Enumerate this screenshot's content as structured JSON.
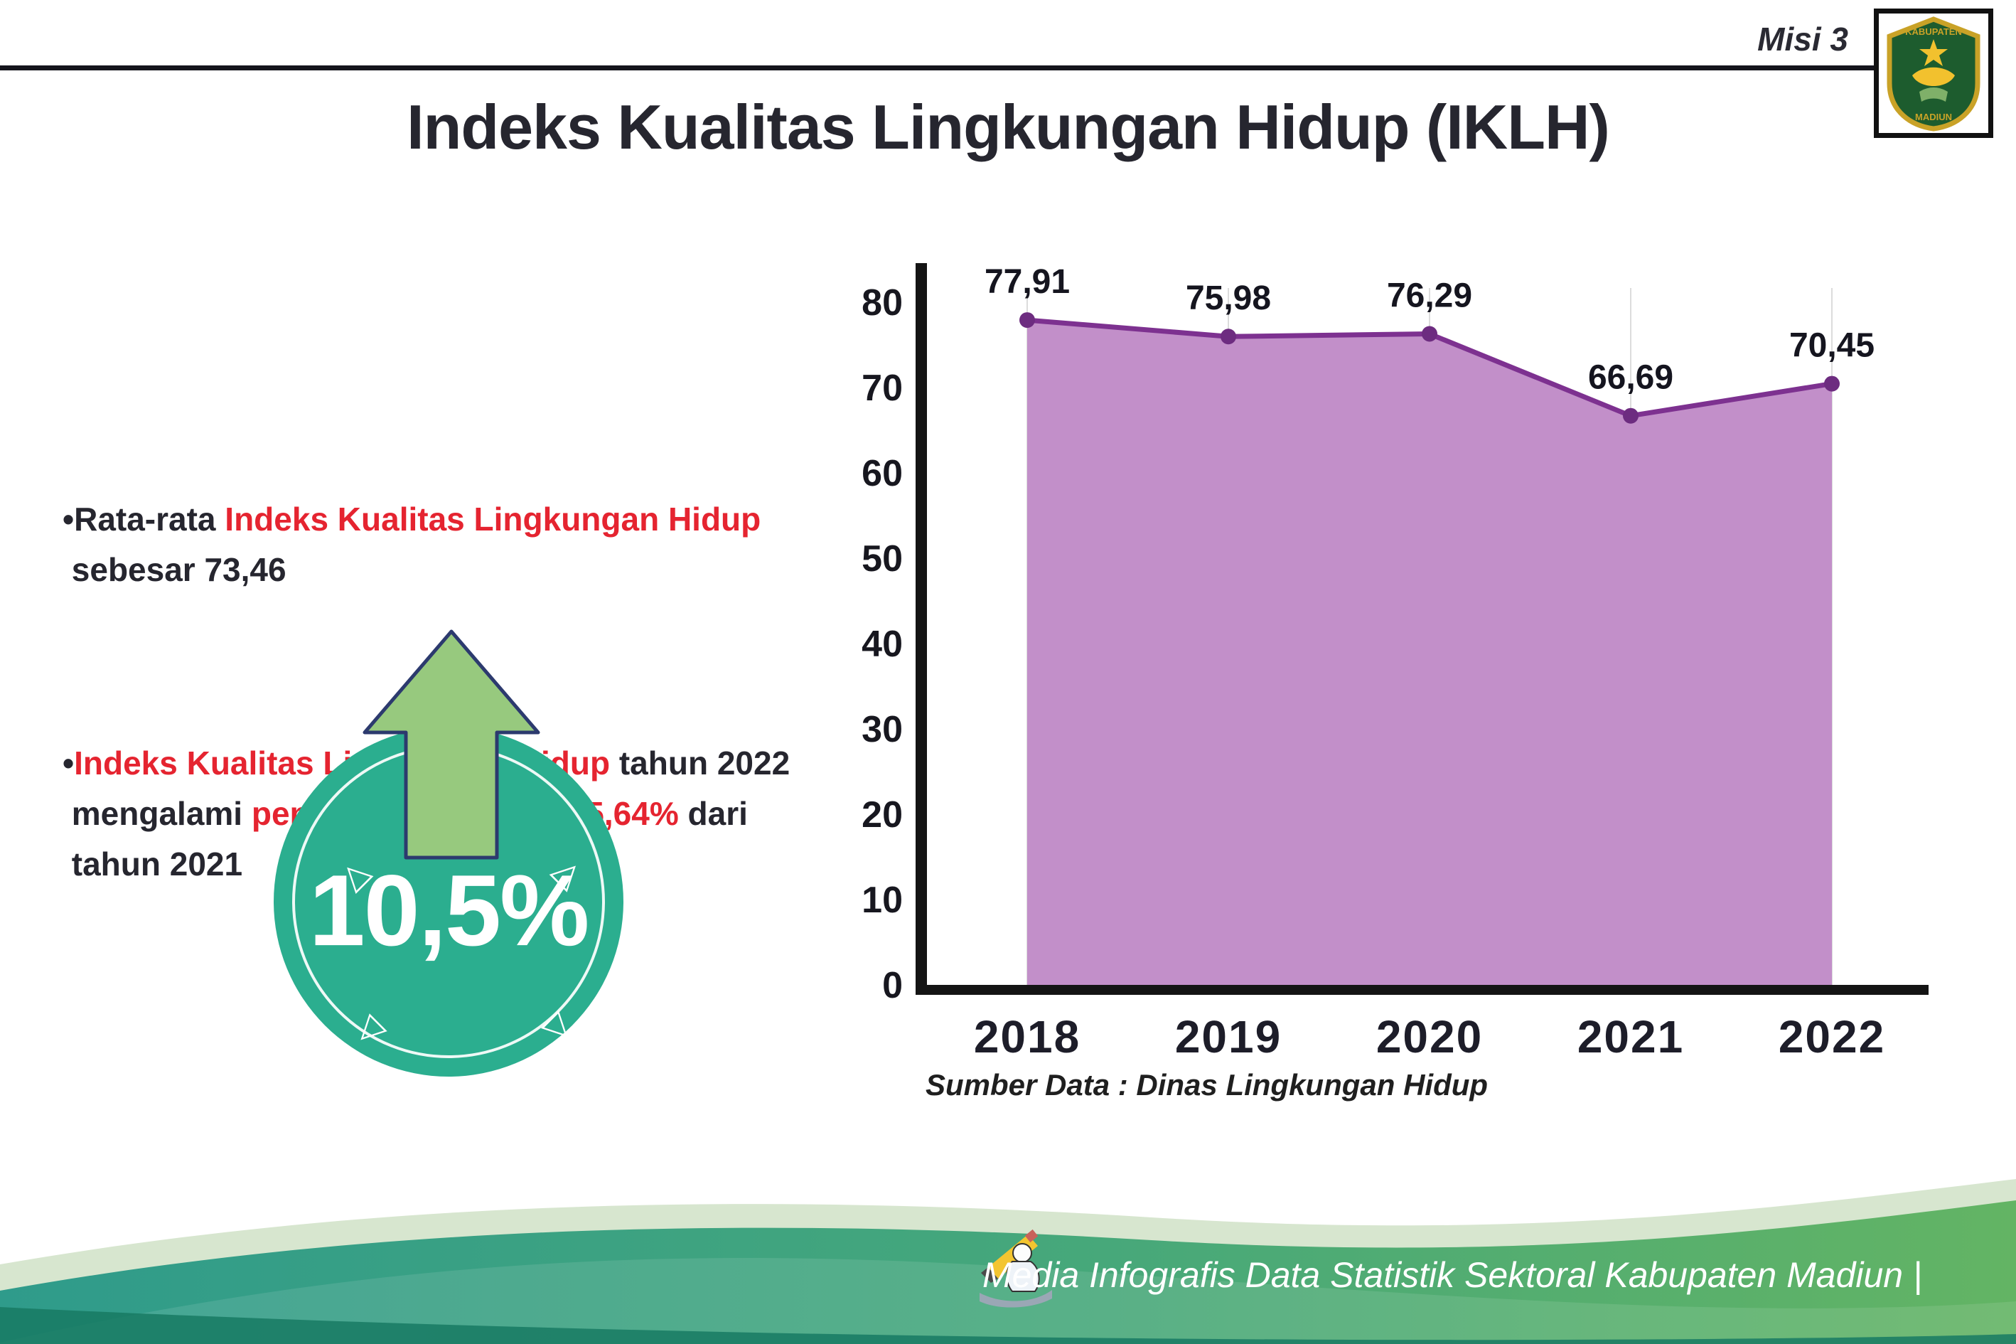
{
  "header": {
    "misi_label": "Misi 3",
    "title": "Indeks Kualitas Lingkungan Hidup (IKLH)",
    "logo_top": "KABUPATEN",
    "logo_bottom": "MADIUN"
  },
  "bullets": {
    "b1": {
      "segments": [
        {
          "t": "•Rata-rata ",
          "c": "dark"
        },
        {
          "t": "Indeks Kualitas Lingkungan Hidup",
          "c": "red"
        },
        {
          "t": "\n sebesar 73,46",
          "c": "dark"
        }
      ]
    },
    "b2": {
      "segments": [
        {
          "t": "•",
          "c": "dark"
        },
        {
          "t": "Indeks Kualitas Lingkungan Hidup",
          "c": "red"
        },
        {
          "t": " tahun 2022\n mengalami ",
          "c": "dark"
        },
        {
          "t": "peningkatan",
          "c": "red"
        },
        {
          "t": " sebesar ",
          "c": "dark"
        },
        {
          "t": "5,64%",
          "c": "red"
        },
        {
          "t": " dari\n tahun 2021",
          "c": "dark"
        }
      ]
    }
  },
  "badge": {
    "value": "10,5%",
    "circle_color": "#2BAE8F",
    "arrow_color": "#97C97E"
  },
  "chart_data": {
    "type": "area",
    "categories": [
      "2018",
      "2019",
      "2020",
      "2021",
      "2022"
    ],
    "values": [
      77.91,
      75.98,
      76.29,
      66.69,
      70.45
    ],
    "value_labels": [
      "77,91",
      "75,98",
      "76,29",
      "66,69",
      "70,45"
    ],
    "ylim": [
      0,
      80
    ],
    "yticks": [
      0,
      10,
      20,
      30,
      40,
      50,
      60,
      70,
      80
    ],
    "xlabel": "",
    "ylabel": "",
    "grid": "vertical-light",
    "legend": "none",
    "line_color": "#7D3190",
    "fill_color": "#C28FC9",
    "marker_color": "#6D2C80",
    "axis_color": "#141414"
  },
  "source_note": "Sumber Data : Dinas Lingkungan Hidup",
  "footer": {
    "text": "Media Infografis Data Statistik Sektoral Kabupaten Madiun |"
  }
}
